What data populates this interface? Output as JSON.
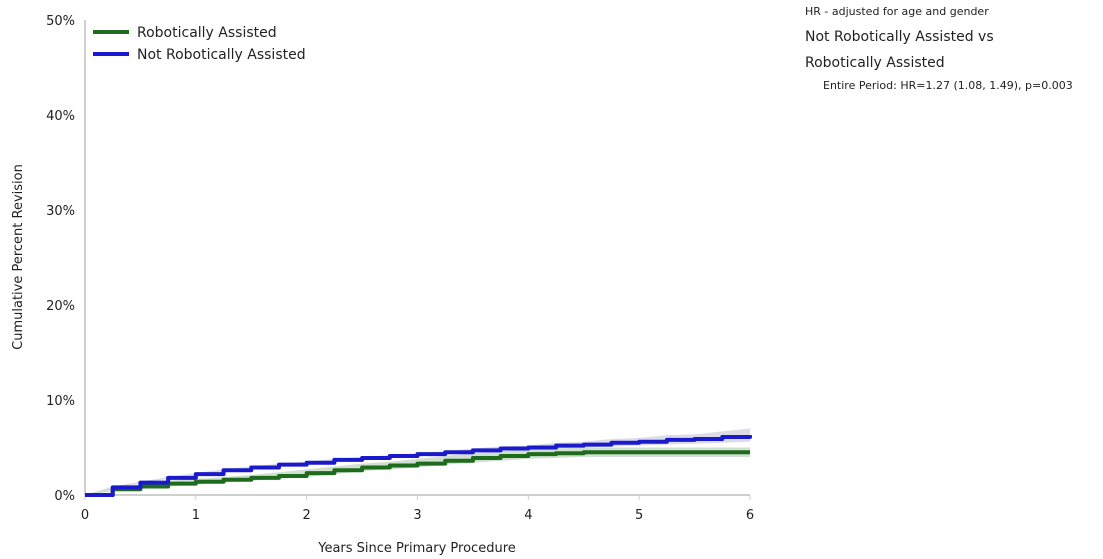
{
  "chart_data": {
    "type": "line",
    "xlabel": "Years Since Primary Procedure",
    "ylabel": "Cumulative Percent Revision",
    "xlim": [
      0,
      6
    ],
    "ylim": [
      0,
      50
    ],
    "x_ticks": [
      "0",
      "1",
      "2",
      "3",
      "4",
      "5",
      "6"
    ],
    "y_ticks": [
      "0%",
      "10%",
      "20%",
      "30%",
      "40%",
      "50%"
    ],
    "grid": false,
    "legend_position": "top-left",
    "series": [
      {
        "name": "Robotically Assisted",
        "color": "#1e6b1e",
        "band_color": "#c9d9c9",
        "x": [
          0,
          0.25,
          0.5,
          0.75,
          1.0,
          1.25,
          1.5,
          1.75,
          2.0,
          2.25,
          2.5,
          2.75,
          3.0,
          3.25,
          3.5,
          3.75,
          4.0,
          4.25,
          4.5,
          5.0,
          5.5,
          6.0
        ],
        "y": [
          0,
          0.6,
          0.9,
          1.2,
          1.4,
          1.6,
          1.8,
          2.0,
          2.3,
          2.6,
          2.9,
          3.1,
          3.3,
          3.6,
          3.9,
          4.1,
          4.3,
          4.4,
          4.5,
          4.5,
          4.5,
          4.5
        ],
        "lower": [
          0,
          0.4,
          0.7,
          0.9,
          1.1,
          1.3,
          1.5,
          1.7,
          1.9,
          2.2,
          2.5,
          2.7,
          2.9,
          3.2,
          3.4,
          3.6,
          3.8,
          3.9,
          4.0,
          4.0,
          4.0,
          4.0
        ],
        "upper": [
          0,
          0.8,
          1.1,
          1.5,
          1.7,
          1.9,
          2.1,
          2.4,
          2.7,
          3.0,
          3.3,
          3.5,
          3.8,
          4.1,
          4.4,
          4.6,
          4.8,
          4.9,
          5.0,
          5.0,
          5.0,
          5.0
        ]
      },
      {
        "name": "Not Robotically Assisted",
        "color": "#1a1acc",
        "band_color": "#d6d6e2",
        "x": [
          0,
          0.25,
          0.5,
          0.75,
          1.0,
          1.25,
          1.5,
          1.75,
          2.0,
          2.25,
          2.5,
          2.75,
          3.0,
          3.25,
          3.5,
          3.75,
          4.0,
          4.25,
          4.5,
          4.75,
          5.0,
          5.25,
          5.5,
          5.75,
          6.0
        ],
        "y": [
          0,
          0.8,
          1.3,
          1.8,
          2.2,
          2.6,
          2.9,
          3.2,
          3.4,
          3.7,
          3.9,
          4.1,
          4.3,
          4.5,
          4.7,
          4.9,
          5.0,
          5.2,
          5.3,
          5.5,
          5.6,
          5.8,
          5.9,
          6.1,
          6.3
        ],
        "lower": [
          0,
          0.7,
          1.2,
          1.7,
          2.1,
          2.5,
          2.8,
          3.1,
          3.3,
          3.6,
          3.8,
          4.0,
          4.2,
          4.4,
          4.5,
          4.7,
          4.8,
          4.9,
          5.0,
          5.1,
          5.2,
          5.3,
          5.4,
          5.5,
          5.6
        ],
        "upper": [
          0,
          0.9,
          1.4,
          1.9,
          2.3,
          2.7,
          3.0,
          3.3,
          3.5,
          3.8,
          4.0,
          4.2,
          4.4,
          4.6,
          4.9,
          5.1,
          5.2,
          5.5,
          5.6,
          5.9,
          6.0,
          6.3,
          6.4,
          6.7,
          7.0
        ]
      }
    ]
  },
  "hr_box": {
    "note": "HR - adjusted for age and gender",
    "comparison_line1": "Not Robotically Assisted vs",
    "comparison_line2": "Robotically Assisted",
    "result": "Entire Period: HR=1.27 (1.08, 1.49), p=0.003"
  }
}
